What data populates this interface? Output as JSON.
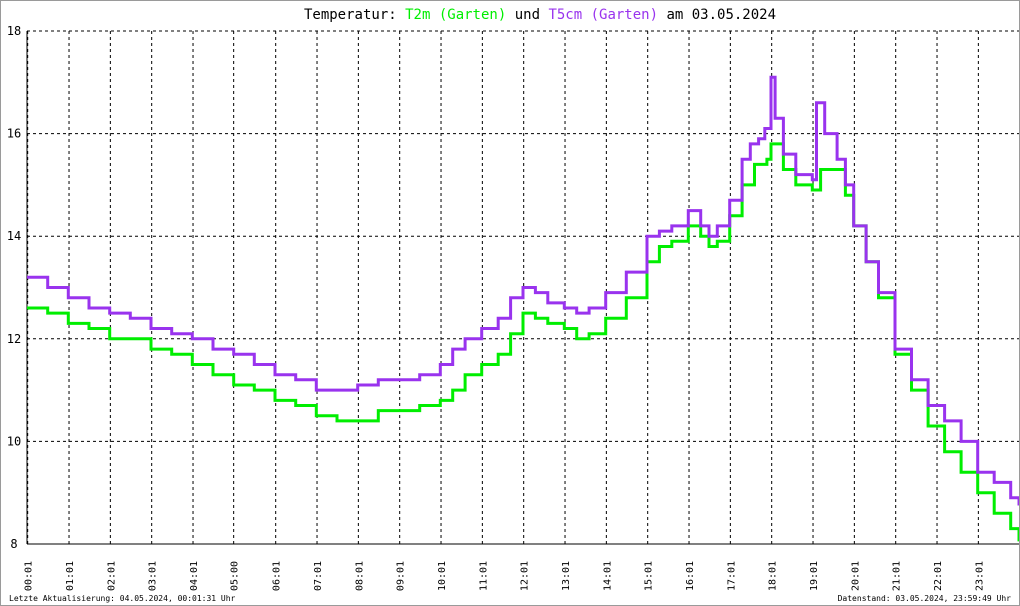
{
  "title": {
    "prefix": "Temperatur: ",
    "series1": "T2m (Garten)",
    "mid": " und ",
    "series2": "T5cm (Garten)",
    "suffix": " am 03.05.2024"
  },
  "footer": {
    "left": "Letzte Aktualisierung: 04.05.2024, 00:01:31 Uhr",
    "right": "Datenstand: 03.05.2024, 23:59:49 Uhr"
  },
  "colors": {
    "t2m": "#00ee00",
    "t5cm": "#9933ee",
    "grid": "#000000"
  },
  "chart_data": {
    "type": "line",
    "title": "Temperatur: T2m (Garten) und T5cm (Garten) am 03.05.2024",
    "xlim": [
      0,
      24
    ],
    "ylim": [
      8,
      18
    ],
    "yticks": [
      8,
      10,
      12,
      14,
      16,
      18
    ],
    "xticks": [
      {
        "h": 0.0167,
        "label": "00:01"
      },
      {
        "h": 1.0167,
        "label": "01:01"
      },
      {
        "h": 2.0167,
        "label": "02:01"
      },
      {
        "h": 3.0167,
        "label": "03:01"
      },
      {
        "h": 4.0167,
        "label": "04:01"
      },
      {
        "h": 5.0,
        "label": "05:00"
      },
      {
        "h": 6.0167,
        "label": "06:01"
      },
      {
        "h": 7.0167,
        "label": "07:01"
      },
      {
        "h": 8.0167,
        "label": "08:01"
      },
      {
        "h": 9.0167,
        "label": "09:01"
      },
      {
        "h": 10.0167,
        "label": "10:01"
      },
      {
        "h": 11.0167,
        "label": "11:01"
      },
      {
        "h": 12.0167,
        "label": "12:01"
      },
      {
        "h": 13.0167,
        "label": "13:01"
      },
      {
        "h": 14.0167,
        "label": "14:01"
      },
      {
        "h": 15.0167,
        "label": "15:01"
      },
      {
        "h": 16.0167,
        "label": "16:01"
      },
      {
        "h": 17.0167,
        "label": "17:01"
      },
      {
        "h": 18.0167,
        "label": "18:01"
      },
      {
        "h": 19.0167,
        "label": "19:01"
      },
      {
        "h": 20.0167,
        "label": "20:01"
      },
      {
        "h": 21.0167,
        "label": "21:01"
      },
      {
        "h": 22.0167,
        "label": "22:01"
      },
      {
        "h": 23.0167,
        "label": "23:01"
      }
    ],
    "grid": true,
    "series": [
      {
        "name": "T2m (Garten)",
        "points": [
          [
            0.0,
            12.6
          ],
          [
            0.5,
            12.5
          ],
          [
            1.0,
            12.3
          ],
          [
            1.5,
            12.2
          ],
          [
            2.0,
            12.0
          ],
          [
            2.5,
            12.0
          ],
          [
            3.0,
            11.8
          ],
          [
            3.5,
            11.7
          ],
          [
            4.0,
            11.5
          ],
          [
            4.5,
            11.3
          ],
          [
            5.0,
            11.1
          ],
          [
            5.5,
            11.0
          ],
          [
            6.0,
            10.8
          ],
          [
            6.5,
            10.7
          ],
          [
            7.0,
            10.5
          ],
          [
            7.5,
            10.4
          ],
          [
            8.0,
            10.4
          ],
          [
            8.5,
            10.6
          ],
          [
            9.0,
            10.6
          ],
          [
            9.5,
            10.7
          ],
          [
            10.0,
            10.8
          ],
          [
            10.3,
            11.0
          ],
          [
            10.6,
            11.3
          ],
          [
            11.0,
            11.5
          ],
          [
            11.4,
            11.7
          ],
          [
            11.7,
            12.1
          ],
          [
            12.0,
            12.5
          ],
          [
            12.3,
            12.4
          ],
          [
            12.6,
            12.3
          ],
          [
            13.0,
            12.2
          ],
          [
            13.3,
            12.0
          ],
          [
            13.6,
            12.1
          ],
          [
            14.0,
            12.4
          ],
          [
            14.5,
            12.8
          ],
          [
            15.0,
            13.5
          ],
          [
            15.3,
            13.8
          ],
          [
            15.6,
            13.9
          ],
          [
            16.0,
            14.2
          ],
          [
            16.3,
            14.0
          ],
          [
            16.5,
            13.8
          ],
          [
            16.7,
            13.9
          ],
          [
            17.0,
            14.4
          ],
          [
            17.3,
            15.0
          ],
          [
            17.6,
            15.4
          ],
          [
            17.9,
            15.5
          ],
          [
            18.0,
            15.8
          ],
          [
            18.3,
            15.3
          ],
          [
            18.6,
            15.0
          ],
          [
            19.0,
            14.9
          ],
          [
            19.2,
            15.3
          ],
          [
            19.5,
            15.3
          ],
          [
            19.8,
            14.8
          ],
          [
            20.0,
            14.2
          ],
          [
            20.3,
            13.5
          ],
          [
            20.6,
            12.8
          ],
          [
            21.0,
            11.7
          ],
          [
            21.4,
            11.0
          ],
          [
            21.8,
            10.3
          ],
          [
            22.2,
            9.8
          ],
          [
            22.6,
            9.4
          ],
          [
            23.0,
            9.0
          ],
          [
            23.4,
            8.6
          ],
          [
            23.8,
            8.3
          ],
          [
            24.0,
            8.05
          ]
        ]
      },
      {
        "name": "T5cm (Garten)",
        "points": [
          [
            0.0,
            13.2
          ],
          [
            0.5,
            13.0
          ],
          [
            1.0,
            12.8
          ],
          [
            1.5,
            12.6
          ],
          [
            2.0,
            12.5
          ],
          [
            2.5,
            12.4
          ],
          [
            3.0,
            12.2
          ],
          [
            3.5,
            12.1
          ],
          [
            4.0,
            12.0
          ],
          [
            4.5,
            11.8
          ],
          [
            5.0,
            11.7
          ],
          [
            5.5,
            11.5
          ],
          [
            6.0,
            11.3
          ],
          [
            6.5,
            11.2
          ],
          [
            7.0,
            11.0
          ],
          [
            7.5,
            11.0
          ],
          [
            8.0,
            11.1
          ],
          [
            8.5,
            11.2
          ],
          [
            9.0,
            11.2
          ],
          [
            9.5,
            11.3
          ],
          [
            10.0,
            11.5
          ],
          [
            10.3,
            11.8
          ],
          [
            10.6,
            12.0
          ],
          [
            11.0,
            12.2
          ],
          [
            11.4,
            12.4
          ],
          [
            11.7,
            12.8
          ],
          [
            12.0,
            13.0
          ],
          [
            12.3,
            12.9
          ],
          [
            12.6,
            12.7
          ],
          [
            13.0,
            12.6
          ],
          [
            13.3,
            12.5
          ],
          [
            13.6,
            12.6
          ],
          [
            14.0,
            12.9
          ],
          [
            14.5,
            13.3
          ],
          [
            15.0,
            14.0
          ],
          [
            15.3,
            14.1
          ],
          [
            15.6,
            14.2
          ],
          [
            16.0,
            14.5
          ],
          [
            16.3,
            14.2
          ],
          [
            16.5,
            14.0
          ],
          [
            16.7,
            14.2
          ],
          [
            17.0,
            14.7
          ],
          [
            17.3,
            15.5
          ],
          [
            17.5,
            15.8
          ],
          [
            17.7,
            15.9
          ],
          [
            17.85,
            16.1
          ],
          [
            18.0,
            17.1
          ],
          [
            18.1,
            16.3
          ],
          [
            18.3,
            15.6
          ],
          [
            18.6,
            15.2
          ],
          [
            19.0,
            15.1
          ],
          [
            19.1,
            16.6
          ],
          [
            19.3,
            16.0
          ],
          [
            19.6,
            15.5
          ],
          [
            19.8,
            15.0
          ],
          [
            20.0,
            14.2
          ],
          [
            20.3,
            13.5
          ],
          [
            20.6,
            12.9
          ],
          [
            21.0,
            11.8
          ],
          [
            21.4,
            11.2
          ],
          [
            21.8,
            10.7
          ],
          [
            22.2,
            10.4
          ],
          [
            22.6,
            10.0
          ],
          [
            23.0,
            9.4
          ],
          [
            23.4,
            9.2
          ],
          [
            23.8,
            8.9
          ],
          [
            24.0,
            8.75
          ]
        ]
      }
    ]
  }
}
